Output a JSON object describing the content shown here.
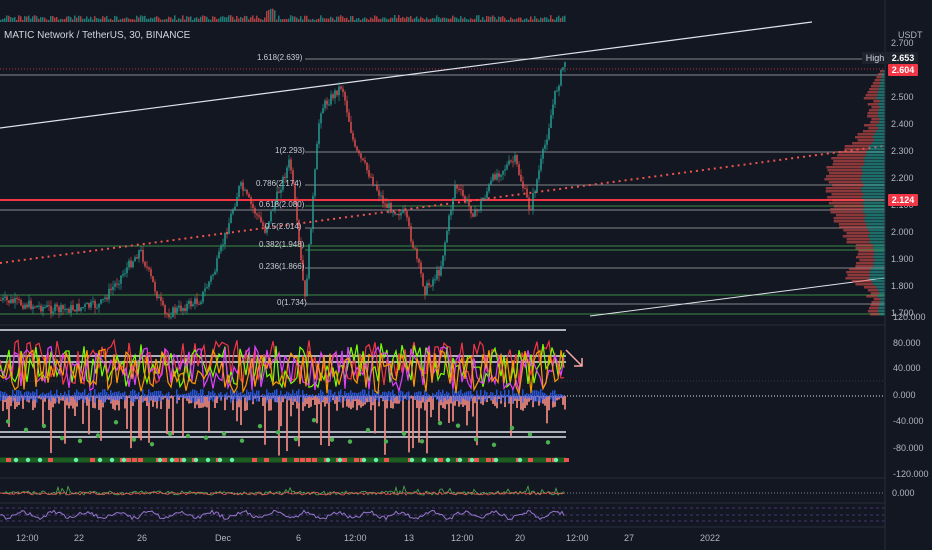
{
  "title": "MATIC Network / TetherUS, 30, BINANCE",
  "currency": "USDT",
  "price_axis": [
    "2.700",
    "2.600",
    "2.500",
    "2.400",
    "2.300",
    "2.200",
    "2.100",
    "2.000",
    "1.900",
    "1.800",
    "1.700"
  ],
  "high_label": "High",
  "high_value": "2.653",
  "last_price": "2.604",
  "line_price": "2.124",
  "osc_axis": [
    "120.000",
    "80.000",
    "40.000",
    "0.000",
    "-40.000",
    "-80.000",
    "-120.000"
  ],
  "osc2_axis": "0.000",
  "time_axis": [
    "12:00",
    "22",
    "26",
    "Dec",
    "6",
    "12:00",
    "13",
    "12:00",
    "20",
    "12:00",
    "27",
    "2022"
  ],
  "fib_levels": [
    "1.618(2.639)",
    "1(2.293)",
    "0.786(2.174)",
    "0.618(2.080)",
    "0.5(2.014)",
    "0.382(1.948)",
    "0.236(1.866)",
    "0(1.734)"
  ],
  "colors": {
    "bg": "#131722",
    "up": "#26a69a",
    "down": "#ef5350",
    "red": "#f23645",
    "green": "#4caf50"
  }
}
